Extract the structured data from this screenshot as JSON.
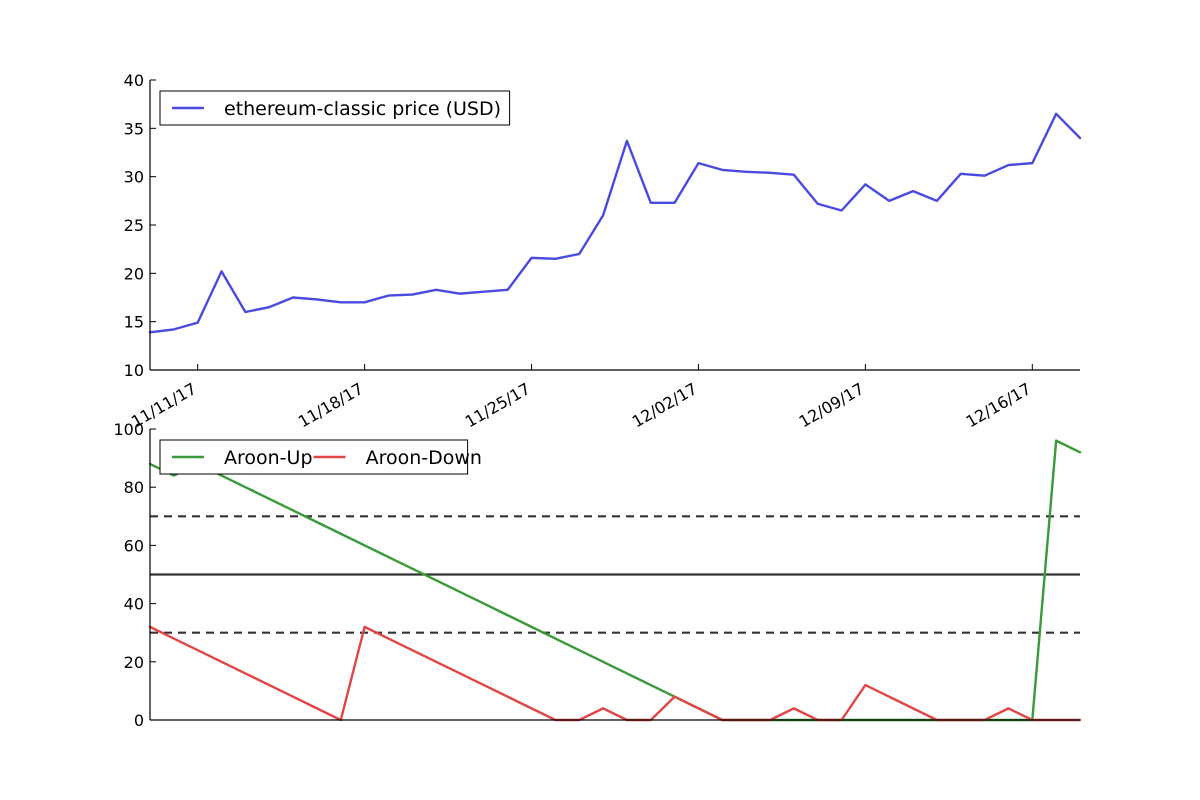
{
  "chart_data": [
    {
      "type": "line",
      "title": "",
      "xlabel": "",
      "ylabel": "",
      "ylim": [
        10,
        40
      ],
      "yticks": [
        10,
        15,
        20,
        25,
        30,
        35,
        40
      ],
      "x_tick_labels": [
        "11/11/17",
        "11/18/17",
        "11/25/17",
        "12/02/17",
        "12/09/17",
        "12/16/17"
      ],
      "x_start_date": "2017-11-09",
      "legend_placement": "top-left",
      "grid": false,
      "series": [
        {
          "name": "ethereum-classic price (USD)",
          "color": "#4a4ae0",
          "values": [
            13.9,
            14.2,
            14.9,
            20.2,
            16.0,
            16.5,
            17.5,
            17.3,
            17.0,
            17.0,
            17.7,
            17.8,
            18.3,
            17.9,
            18.1,
            18.3,
            21.6,
            21.5,
            22.0,
            26.0,
            33.7,
            27.3,
            27.3,
            31.4,
            30.7,
            30.5,
            30.4,
            30.2,
            27.2,
            26.5,
            29.2,
            27.5,
            28.5,
            27.5,
            30.3,
            30.1,
            31.2,
            31.4,
            36.5,
            34.0
          ]
        }
      ]
    },
    {
      "type": "line",
      "title": "",
      "xlabel": "",
      "ylabel": "",
      "ylim": [
        0,
        100
      ],
      "yticks": [
        0,
        20,
        40,
        60,
        80,
        100
      ],
      "legend_placement": "top-left",
      "grid": false,
      "reference_lines": [
        {
          "y": 70,
          "style": "dashed",
          "color": "#333333"
        },
        {
          "y": 50,
          "style": "solid",
          "color": "#333333"
        },
        {
          "y": 30,
          "style": "dashed",
          "color": "#333333"
        }
      ],
      "series": [
        {
          "name": "Aroon-Up",
          "color": "#3a9a3a",
          "values": [
            88,
            84,
            88,
            84,
            80,
            76,
            72,
            68,
            64,
            60,
            56,
            52,
            48,
            44,
            40,
            36,
            32,
            28,
            24,
            20,
            16,
            12,
            8,
            4,
            0,
            0,
            0,
            0,
            0,
            0,
            0,
            0,
            0,
            0,
            0,
            0,
            0,
            0,
            96,
            92
          ]
        },
        {
          "name": "Aroon-Down",
          "color": "#e04646",
          "values": [
            32,
            28,
            24,
            20,
            16,
            12,
            8,
            4,
            0,
            32,
            28,
            24,
            20,
            16,
            12,
            8,
            4,
            0,
            0,
            4,
            0,
            0,
            8,
            4,
            0,
            0,
            0,
            4,
            0,
            0,
            12,
            8,
            4,
            0,
            0,
            0,
            4,
            0,
            0,
            0
          ]
        }
      ]
    }
  ]
}
